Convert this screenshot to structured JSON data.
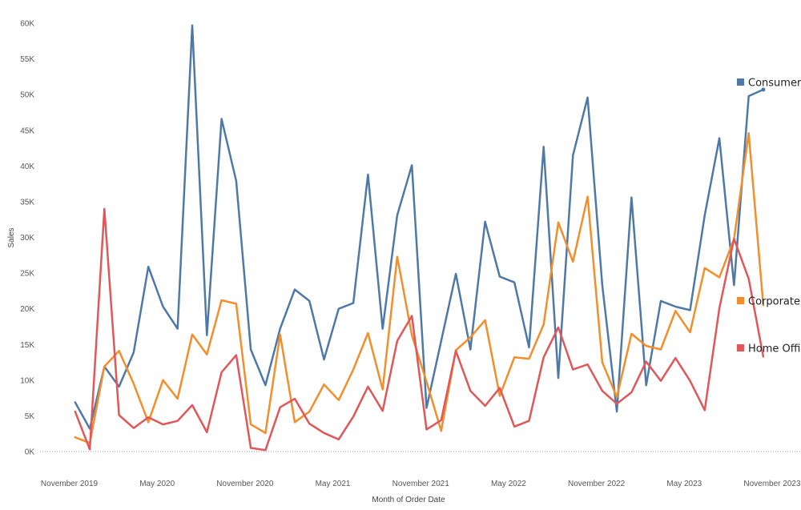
{
  "chart_data": {
    "type": "line",
    "xlabel": "Month of Order Date",
    "ylabel": "Sales",
    "y_ticks": [
      0,
      5000,
      10000,
      15000,
      20000,
      25000,
      30000,
      35000,
      40000,
      45000,
      50000,
      55000,
      60000
    ],
    "y_tick_labels": [
      "0K",
      "5K",
      "10K",
      "15K",
      "20K",
      "25K",
      "30K",
      "35K",
      "40K",
      "45K",
      "50K",
      "55K",
      "60K"
    ],
    "ylim": [
      0,
      62000
    ],
    "x_tick_labels": [
      {
        "month_index": 0,
        "label": "November 2019"
      },
      {
        "month_index": 6,
        "label": "May 2020"
      },
      {
        "month_index": 12,
        "label": "November 2020"
      },
      {
        "month_index": 18,
        "label": "May 2021"
      },
      {
        "month_index": 24,
        "label": "November 2021"
      },
      {
        "month_index": 30,
        "label": "May 2022"
      },
      {
        "month_index": 36,
        "label": "November 2022"
      },
      {
        "month_index": 42,
        "label": "May 2023"
      },
      {
        "month_index": 48,
        "label": "November 2023"
      }
    ],
    "x_start_month": "2019-11",
    "legend_placement": "right",
    "gridlines": false,
    "zero_line": "dotted",
    "series": [
      {
        "name": "Consumer",
        "color": "#4e79a7",
        "end_marker": true,
        "values": [
          null,
          6900,
          3200,
          11900,
          9100,
          13900,
          25900,
          20300,
          17200,
          59700,
          16300,
          46600,
          37900,
          14300,
          9300,
          17200,
          22700,
          21100,
          12900,
          20000,
          20800,
          38800,
          17200,
          33100,
          40100,
          6100,
          15500,
          24900,
          14300,
          32200,
          24500,
          23700,
          14600,
          42700,
          10300,
          41500,
          49600,
          23300,
          5600,
          35600,
          9300,
          21100,
          20300,
          19800,
          33100,
          43900,
          23300,
          49800,
          50700
        ]
      },
      {
        "name": "Corporate",
        "color": "#f28e2b",
        "end_marker": false,
        "values": [
          null,
          2000,
          1200,
          11900,
          14100,
          9500,
          4100,
          10000,
          7400,
          16400,
          13600,
          21200,
          20700,
          3800,
          2600,
          16400,
          4100,
          5600,
          9400,
          7200,
          11500,
          16600,
          8700,
          27300,
          16300,
          9800,
          2900,
          14200,
          16000,
          18400,
          7800,
          13200,
          13000,
          17800,
          32100,
          26600,
          35700,
          12500,
          7600,
          16500,
          14800,
          14300,
          19700,
          16700,
          25700,
          24400,
          29800,
          44600,
          20500
        ]
      },
      {
        "name": "Home Office",
        "color": "#e15759",
        "end_marker": false,
        "values": [
          null,
          5600,
          300,
          34000,
          5100,
          3300,
          4800,
          3800,
          4300,
          6500,
          2700,
          11100,
          13500,
          500,
          200,
          6200,
          7400,
          3900,
          2600,
          1700,
          4900,
          9100,
          5700,
          15500,
          19000,
          3100,
          4400,
          14100,
          8500,
          6400,
          8900,
          3500,
          4300,
          13200,
          17400,
          11500,
          12200,
          8500,
          6700,
          8300,
          12600,
          9900,
          13100,
          9900,
          5800,
          20100,
          29800,
          24200,
          13300
        ]
      }
    ]
  }
}
